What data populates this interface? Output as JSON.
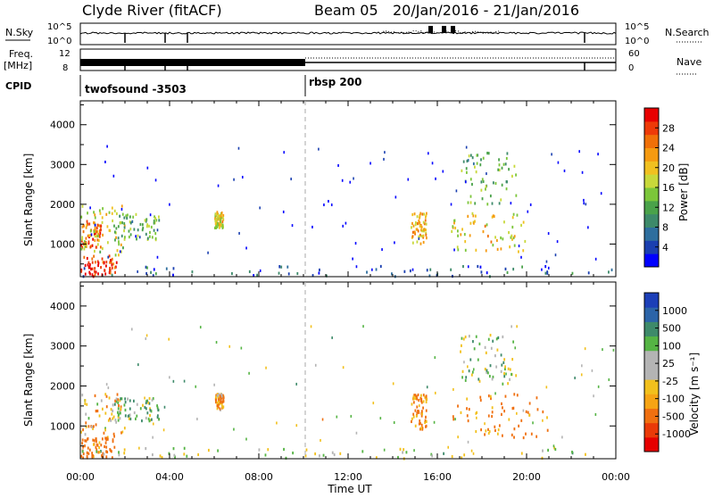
{
  "header": {
    "station": "Clyde River (fitACF)",
    "beam": "Beam 05",
    "date_range": "20/Jan/2016 - 21/Jan/2016"
  },
  "strip_nsky": {
    "left_label": "N.Sky",
    "left_ticks": [
      "10^5",
      "10^0"
    ],
    "right_ticks": [
      "10^5",
      "10^0"
    ],
    "right_label": "N.Search"
  },
  "strip_freq": {
    "left_label_1": "Freq.",
    "left_label_2": "[MHz]",
    "left_ticks": [
      "12",
      "8"
    ],
    "right_ticks": [
      "60",
      "0"
    ],
    "right_label": "Nave"
  },
  "strip_cpid": {
    "left_label": "CPID",
    "program_1": "twofsound -3503",
    "program_2": "rbsp 200"
  },
  "power_panel": {
    "ylabel": "Slant Range [km]",
    "yticks": [
      "4000",
      "3000",
      "2000",
      "1000"
    ],
    "colorbar_label": "Power [dB]",
    "colorbar_ticks": [
      "28",
      "24",
      "20",
      "16",
      "12",
      "8",
      "4"
    ],
    "colorbar_colors": [
      "#0000ff",
      "#1a3fb0",
      "#2e6e9e",
      "#3d8a6a",
      "#4aa24a",
      "#7cc63a",
      "#c8d83a",
      "#f0c020",
      "#f59a10",
      "#f07008",
      "#ee3a08",
      "#e80000"
    ]
  },
  "velocity_panel": {
    "ylabel": "Slant Range [km]",
    "yticks": [
      "4000",
      "3000",
      "2000",
      "1000"
    ],
    "colorbar_label": "Velocity [m s⁻¹]",
    "colorbar_ticks": [
      "1000",
      "500",
      "100",
      "25",
      "-25",
      "-100",
      "-500",
      "-1000"
    ],
    "colorbar_colors": [
      "#1c3fb8",
      "#2c64a8",
      "#3e8a6a",
      "#55b444",
      "#b4b4b4",
      "#b4b4b4",
      "#f2c01c",
      "#f6a414",
      "#f07010",
      "#ea3a08",
      "#e60000"
    ]
  },
  "time_axis": {
    "ticks": [
      "00:00",
      "04:00",
      "08:00",
      "12:00",
      "16:00",
      "20:00",
      "00:00"
    ],
    "xlabel": "Time UT"
  },
  "chart_data": [
    {
      "type": "heatmap",
      "title": "Clyde River (fitACF) Beam 05 20/Jan/2016 - 21/Jan/2016",
      "xlabel": "Time UT",
      "ylabel": "Slant Range [km]",
      "xlim_hours": [
        0,
        24
      ],
      "ylim_km": [
        180,
        4600
      ],
      "colorbar": "Power [dB]",
      "clim": [
        0,
        30
      ],
      "program_change_hour": 10,
      "regions": [
        {
          "t0": 0.0,
          "t1": 1.6,
          "r0": 180,
          "r1": 700,
          "value": 27
        },
        {
          "t0": 0.0,
          "t1": 0.9,
          "r0": 900,
          "r1": 1600,
          "value": 24
        },
        {
          "t0": 0.0,
          "t1": 2.0,
          "r0": 700,
          "r1": 2000,
          "value": 17
        },
        {
          "t0": 1.5,
          "t1": 3.5,
          "r0": 1100,
          "r1": 1750,
          "value": 12
        },
        {
          "t0": 6.0,
          "t1": 6.4,
          "r0": 1400,
          "r1": 1800,
          "value": 18
        },
        {
          "t0": 14.8,
          "t1": 15.5,
          "r0": 1000,
          "r1": 1800,
          "value": 20
        },
        {
          "t0": 16.6,
          "t1": 20.0,
          "r0": 800,
          "r1": 1800,
          "value": 18
        },
        {
          "t0": 17.0,
          "t1": 19.5,
          "r0": 2000,
          "r1": 3300,
          "value": 12
        },
        {
          "t0": 0.0,
          "t1": 23.9,
          "r0": 180,
          "r1": 450,
          "value": 6
        }
      ]
    },
    {
      "type": "heatmap",
      "xlabel": "Time UT",
      "ylabel": "Slant Range [km]",
      "xlim_hours": [
        0,
        24
      ],
      "ylim_km": [
        180,
        4600
      ],
      "colorbar": "Velocity [m s⁻¹]",
      "clim": [
        -1000,
        1000
      ],
      "regions": [
        {
          "t0": 0.0,
          "t1": 2.0,
          "r0": 700,
          "r1": 1800,
          "value": -60
        },
        {
          "t0": 0.0,
          "t1": 1.5,
          "r0": 200,
          "r1": 700,
          "value": -200
        },
        {
          "t0": 1.5,
          "t1": 3.5,
          "r0": 1100,
          "r1": 1700,
          "value": 60
        },
        {
          "t0": 6.0,
          "t1": 6.4,
          "r0": 1400,
          "r1": 1800,
          "value": -100
        },
        {
          "t0": 14.8,
          "t1": 15.5,
          "r0": 900,
          "r1": 1800,
          "value": -150
        },
        {
          "t0": 16.6,
          "t1": 21.0,
          "r0": 700,
          "r1": 1800,
          "value": -150
        },
        {
          "t0": 17.0,
          "t1": 19.5,
          "r0": 2000,
          "r1": 3300,
          "value": 20
        },
        {
          "t0": 0.0,
          "t1": 23.9,
          "r0": 180,
          "r1": 450,
          "value": 0
        }
      ]
    }
  ]
}
